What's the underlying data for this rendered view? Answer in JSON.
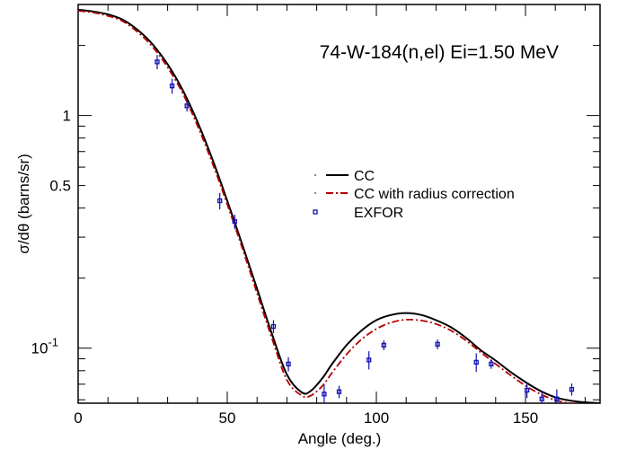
{
  "chart_data": {
    "type": "line",
    "title": "74-W-184(n,el) Ei=1.50 MeV",
    "xlabel": "Angle (deg.)",
    "ylabel": "σ/dθ (barns/sr)",
    "xlim": [
      0,
      175
    ],
    "ylim": [
      0.058,
      3.0
    ],
    "yscale": "log",
    "grid": false,
    "legend_position": "center-right",
    "x_ticks": [
      {
        "value": 0,
        "label": "0"
      },
      {
        "value": 50,
        "label": "50"
      },
      {
        "value": 100,
        "label": "100"
      },
      {
        "value": 150,
        "label": "150"
      }
    ],
    "y_ticks": [
      {
        "value": 0.1,
        "label": "10",
        "sup": "-1"
      },
      {
        "value": 0.5,
        "label": "0.5",
        "sup": ""
      },
      {
        "value": 1,
        "label": "1",
        "sup": ""
      }
    ],
    "series": [
      {
        "name": "CC",
        "style": "solid",
        "color": "#000000",
        "x": [
          0,
          5,
          10,
          15,
          20,
          25,
          30,
          35,
          40,
          45,
          50,
          55,
          60,
          65,
          70,
          75,
          78,
          82,
          85,
          90,
          95,
          100,
          105,
          110,
          115,
          120,
          125,
          130,
          135,
          140,
          145,
          150,
          155,
          160,
          165,
          170,
          175
        ],
        "y": [
          2.85,
          2.8,
          2.72,
          2.58,
          2.33,
          2.02,
          1.66,
          1.29,
          0.94,
          0.65,
          0.43,
          0.28,
          0.18,
          0.115,
          0.077,
          0.0645,
          0.0655,
          0.0745,
          0.085,
          0.103,
          0.119,
          0.132,
          0.139,
          0.1415,
          0.139,
          0.132,
          0.123,
          0.111,
          0.098,
          0.0885,
          0.079,
          0.0715,
          0.0655,
          0.0615,
          0.0595,
          0.0585,
          0.058
        ]
      },
      {
        "name": "CC with radius correction",
        "style": "dashdot",
        "color": "#b40000",
        "x": [
          0,
          5,
          10,
          15,
          20,
          25,
          30,
          35,
          40,
          45,
          50,
          55,
          60,
          65,
          70,
          75,
          78,
          82,
          85,
          90,
          95,
          100,
          105,
          110,
          115,
          120,
          125,
          130,
          135,
          140,
          145,
          150,
          155,
          160,
          165,
          170,
          175
        ],
        "y": [
          2.82,
          2.77,
          2.68,
          2.54,
          2.28,
          1.97,
          1.61,
          1.25,
          0.905,
          0.625,
          0.415,
          0.27,
          0.172,
          0.11,
          0.073,
          0.0625,
          0.0625,
          0.069,
          0.078,
          0.094,
          0.109,
          0.121,
          0.129,
          0.1325,
          0.1315,
          0.127,
          0.119,
          0.108,
          0.096,
          0.0855,
          0.0765,
          0.069,
          0.0635,
          0.0598,
          0.058,
          0.0575,
          0.0572
        ]
      },
      {
        "name": "EXFOR",
        "style": "markers",
        "color": "#1010b0",
        "x": [
          26.5,
          31.5,
          36.5,
          47.5,
          52.5,
          65.5,
          70.5,
          82.5,
          87.5,
          97.5,
          102.5,
          120.5,
          133.5,
          138.5,
          150.5,
          155.5,
          160.5,
          165.5
        ],
        "y": [
          1.7,
          1.34,
          1.1,
          0.43,
          0.35,
          0.124,
          0.0855,
          0.0635,
          0.065,
          0.089,
          0.103,
          0.104,
          0.087,
          0.0855,
          0.066,
          0.0605,
          0.0605,
          0.0665
        ],
        "yerr": [
          0.12,
          0.1,
          0.06,
          0.035,
          0.025,
          0.008,
          0.006,
          0.006,
          0.004,
          0.008,
          0.005,
          0.005,
          0.008,
          0.004,
          0.005,
          0.005,
          0.006,
          0.004
        ]
      }
    ]
  }
}
